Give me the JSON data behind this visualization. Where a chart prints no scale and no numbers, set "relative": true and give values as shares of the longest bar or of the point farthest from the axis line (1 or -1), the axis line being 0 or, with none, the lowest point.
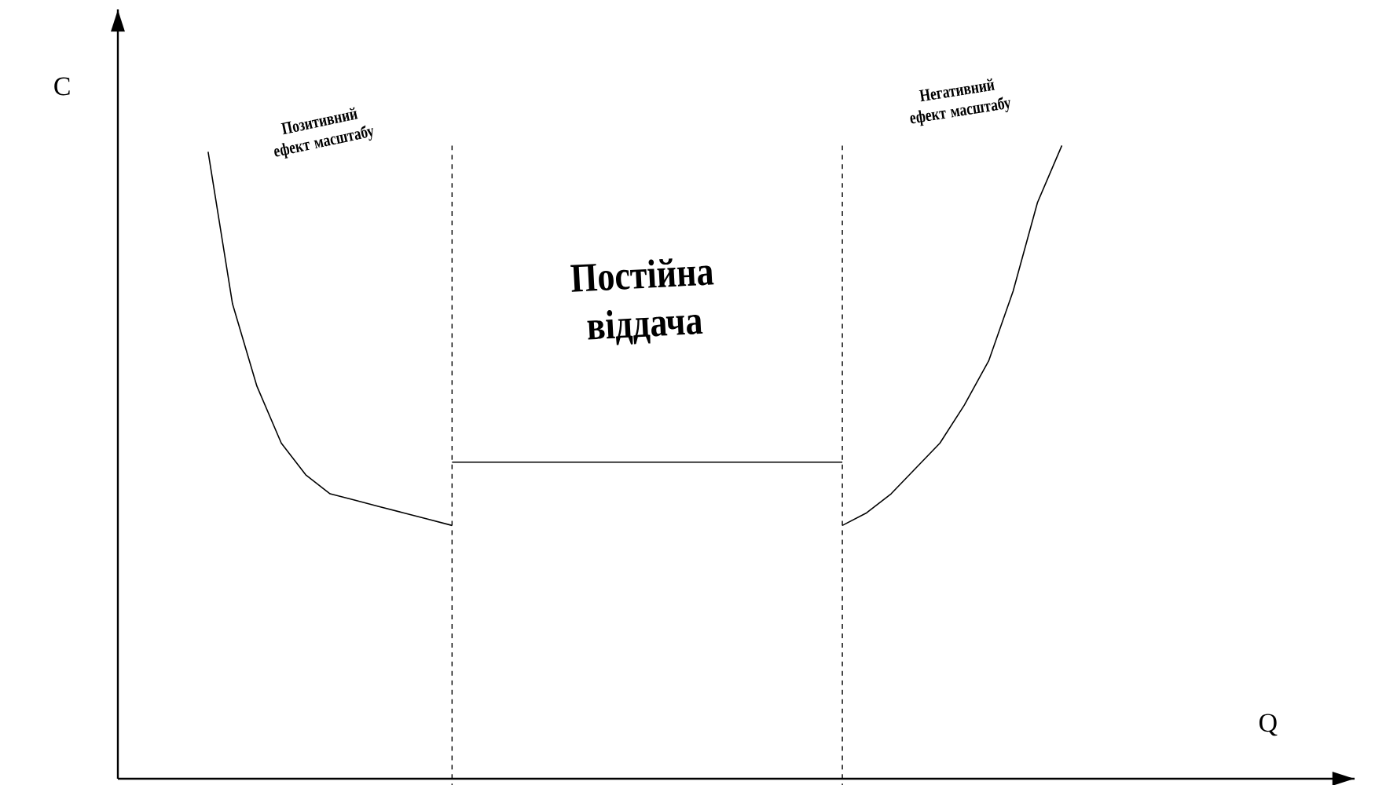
{
  "chart_data": {
    "type": "line",
    "relative": true,
    "xlabel": "Q",
    "ylabel": "C",
    "marker": "none",
    "line_style": "solid",
    "categories": [
      null,
      null,
      null,
      null,
      null,
      null,
      null,
      null,
      null,
      null,
      null,
      null,
      null,
      null,
      null,
      null,
      null,
      null,
      null,
      null,
      null,
      null,
      null,
      null,
      null,
      null,
      null,
      null,
      null,
      null,
      null,
      null,
      null,
      null,
      null,
      null,
      null,
      null,
      null,
      null,
      null,
      null,
      null,
      null,
      null,
      null,
      null,
      null,
      null,
      null,
      null
    ],
    "series": [
      {
        "color": "#000000",
        "values": [
          null,
          null,
          null,
          0.99,
          0.75,
          0.62,
          0.53,
          0.48,
          0.45,
          0.44,
          0.43,
          0.42,
          0.41,
          0.4,
          null,
          null,
          null,
          null,
          null,
          null,
          null,
          null,
          null,
          null,
          null,
          null,
          null,
          null,
          null,
          null,
          null,
          null,
          null,
          null,
          null,
          null,
          null,
          null,
          null,
          null,
          null,
          null,
          null,
          null,
          null,
          null,
          null,
          null,
          null,
          null,
          null
        ]
      },
      {
        "color": "#000000",
        "values": [
          null,
          null,
          null,
          null,
          null,
          null,
          null,
          null,
          null,
          null,
          null,
          null,
          null,
          0.5,
          0.5,
          0.5,
          0.5,
          0.5,
          0.5,
          0.5,
          0.5,
          0.5,
          0.5,
          0.5,
          0.5,
          0.5,
          0.5,
          0.5,
          0.5,
          0.5,
          null,
          null,
          null,
          null,
          null,
          null,
          null,
          null,
          null,
          null,
          null,
          null,
          null,
          null,
          null,
          null,
          null,
          null,
          null,
          null,
          null
        ]
      },
      {
        "color": "#000000",
        "values": [
          null,
          null,
          null,
          null,
          null,
          null,
          null,
          null,
          null,
          null,
          null,
          null,
          null,
          null,
          null,
          null,
          null,
          null,
          null,
          null,
          null,
          null,
          null,
          null,
          null,
          null,
          null,
          null,
          null,
          0.4,
          0.42,
          0.45,
          0.49,
          0.53,
          0.59,
          0.66,
          0.77,
          0.91,
          1.0,
          null,
          null,
          null,
          null,
          null,
          null,
          null,
          null,
          null,
          null,
          null,
          null
        ]
      }
    ],
    "annotations": [
      "Позитивний ефект масштабу",
      "Постійна віддача",
      "Негативний ефект масштабу"
    ]
  }
}
